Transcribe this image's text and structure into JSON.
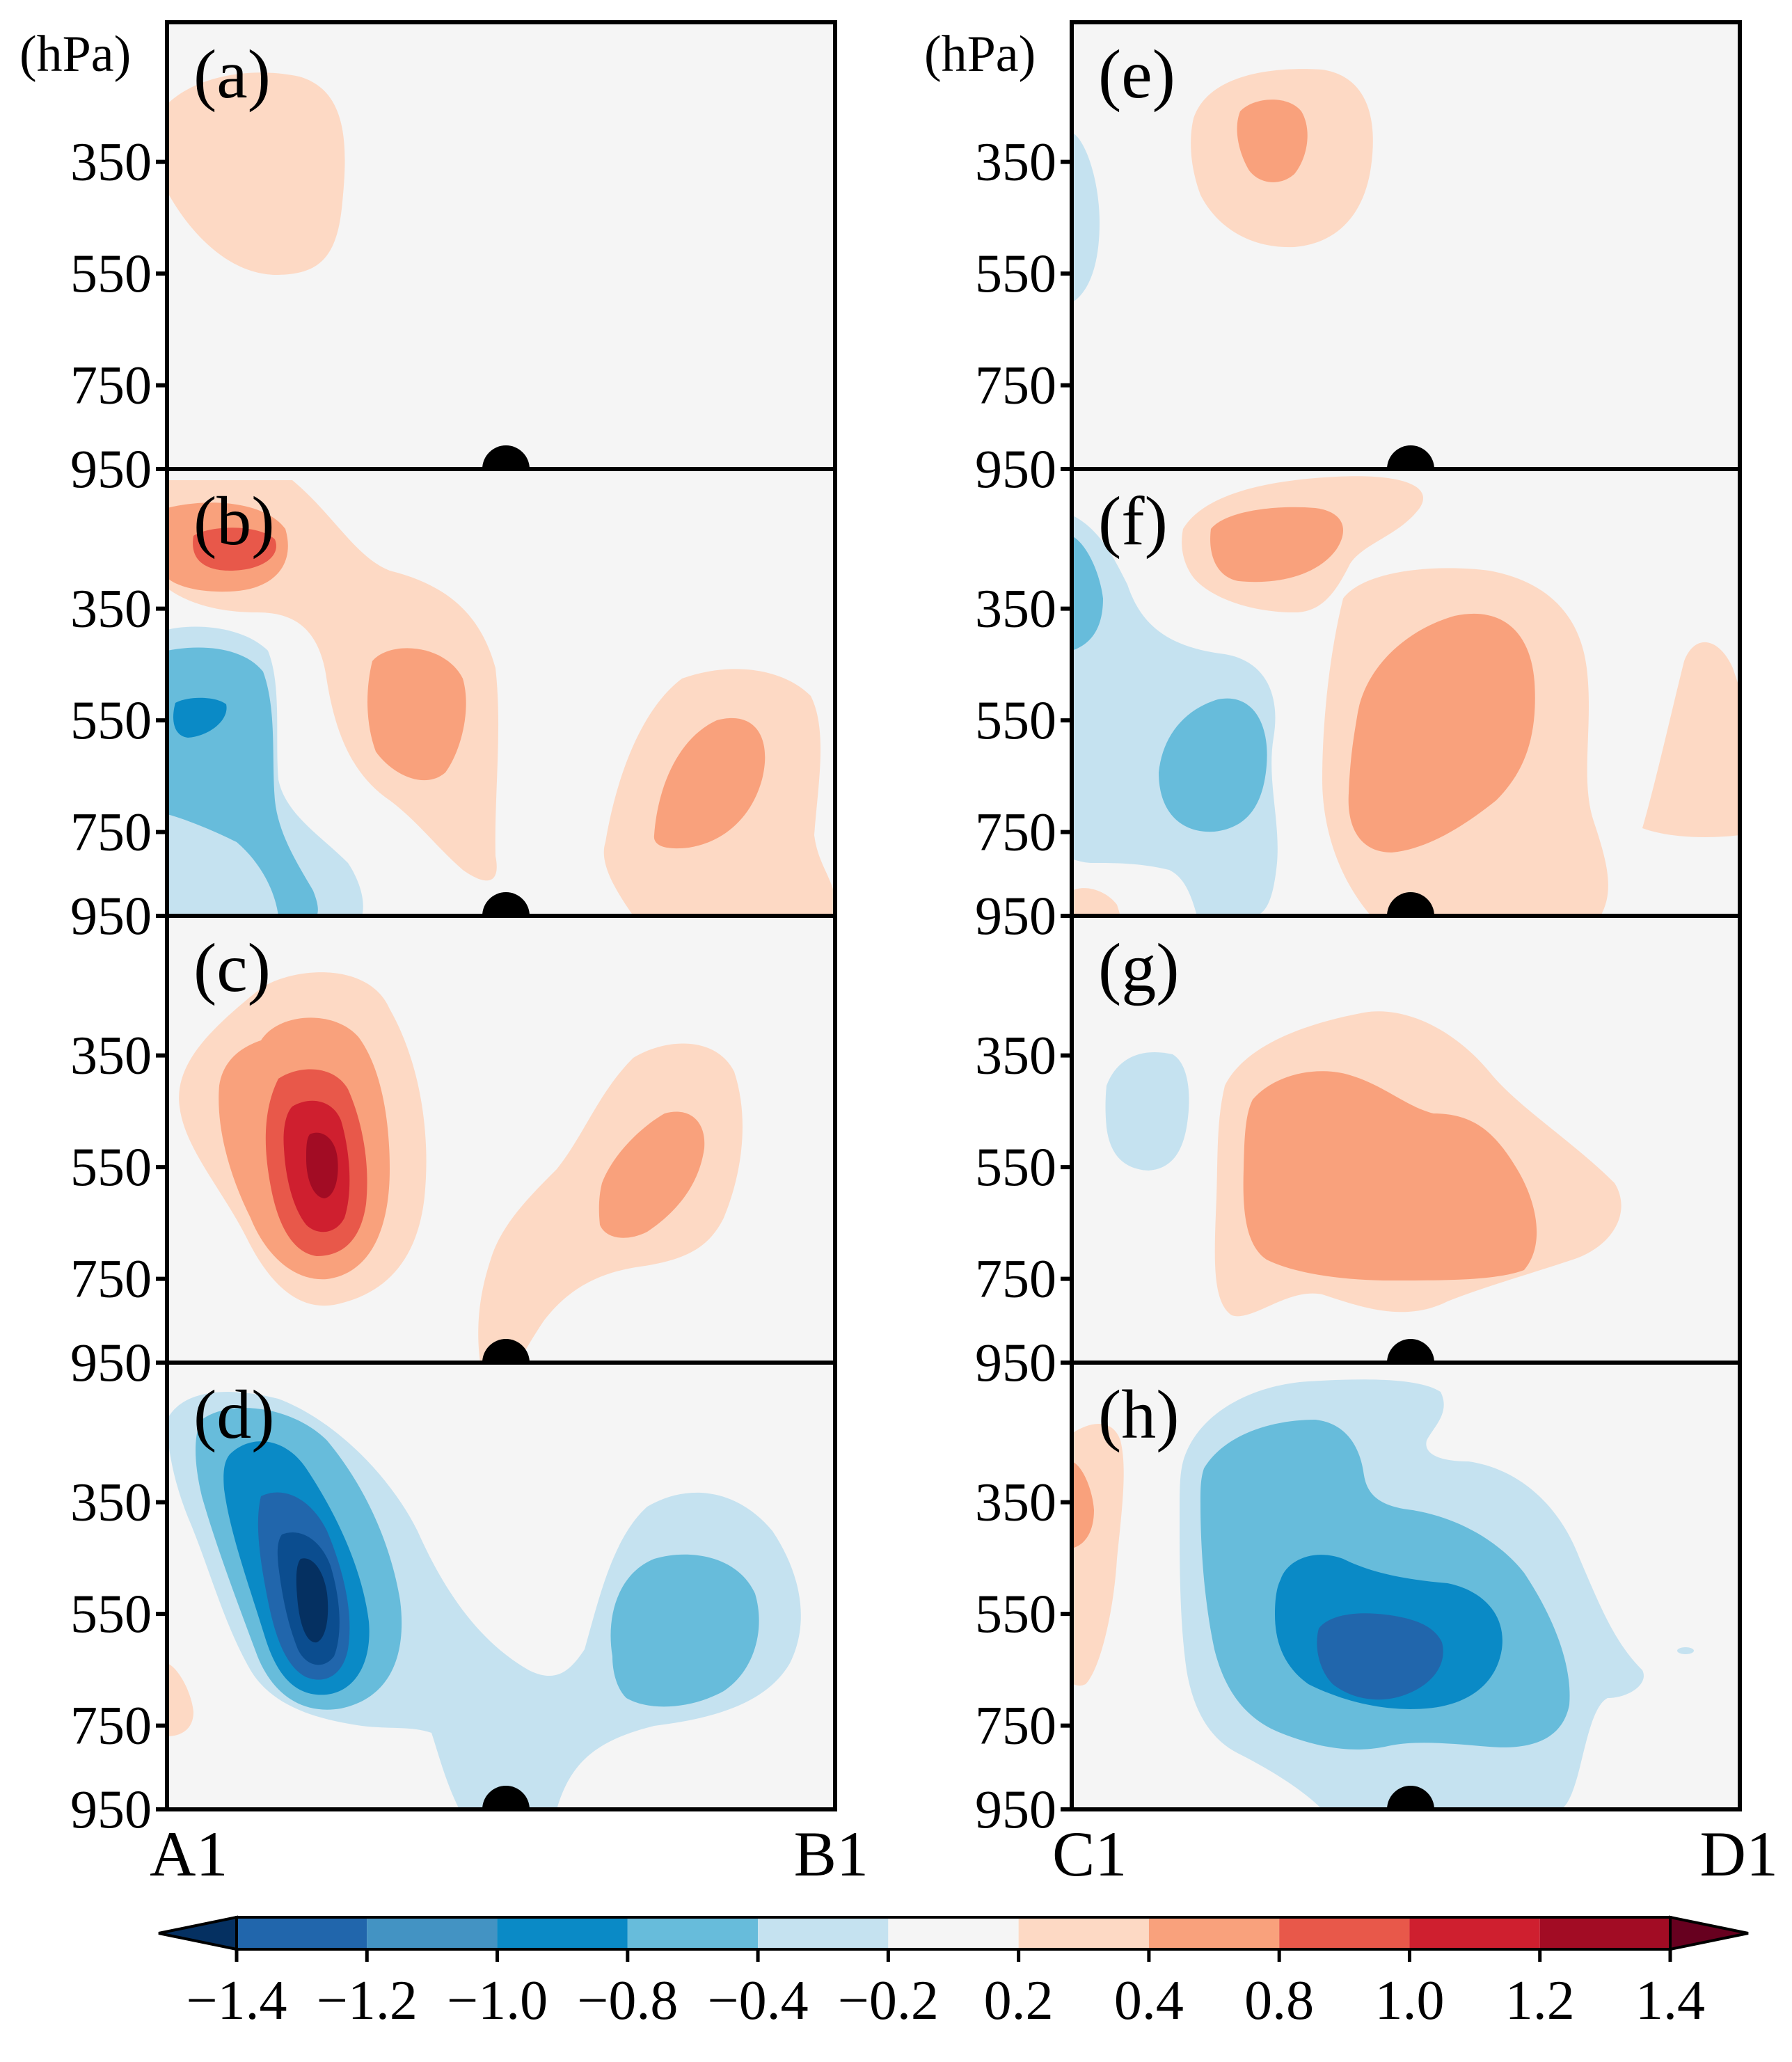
{
  "chart_data": {
    "type": "heatmap",
    "description_kind": "filled-contour vertical cross-sections",
    "yaxis": {
      "unit_label": "(hPa)",
      "ticks": [
        "350",
        "550",
        "750",
        "950"
      ]
    },
    "panels": [
      {
        "id": "a",
        "label": "(a)",
        "section": "A1-B1"
      },
      {
        "id": "b",
        "label": "(b)",
        "section": "A1-B1"
      },
      {
        "id": "c",
        "label": "(c)",
        "section": "A1-B1"
      },
      {
        "id": "d",
        "label": "(d)",
        "section": "A1-B1"
      },
      {
        "id": "e",
        "label": "(e)",
        "section": "C1-D1"
      },
      {
        "id": "f",
        "label": "(f)",
        "section": "C1-D1"
      },
      {
        "id": "g",
        "label": "(g)",
        "section": "C1-D1"
      },
      {
        "id": "h",
        "label": "(h)",
        "section": "C1-D1"
      }
    ],
    "xaxis_left": {
      "start": "A1",
      "end": "B1"
    },
    "xaxis_right": {
      "start": "C1",
      "end": "D1"
    },
    "colorbar": {
      "levels": [
        "−1.4",
        "−1.2",
        "−1.0",
        "−0.8",
        "−0.4",
        "−0.2",
        "0.2",
        "0.4",
        "0.8",
        "1.0",
        "1.2",
        "1.4"
      ],
      "colors": [
        "#053061",
        "#2166ac",
        "#4393c3",
        "#0a8ac6",
        "#67bcdb",
        "#c5e2f0",
        "#f5f5f5",
        "#fdd9c4",
        "#f9a17c",
        "#e8584a",
        "#cf1f2f",
        "#a20c24",
        "#67001f"
      ],
      "extend": "both"
    },
    "marker": "filled black semicircle at surface in each panel"
  }
}
